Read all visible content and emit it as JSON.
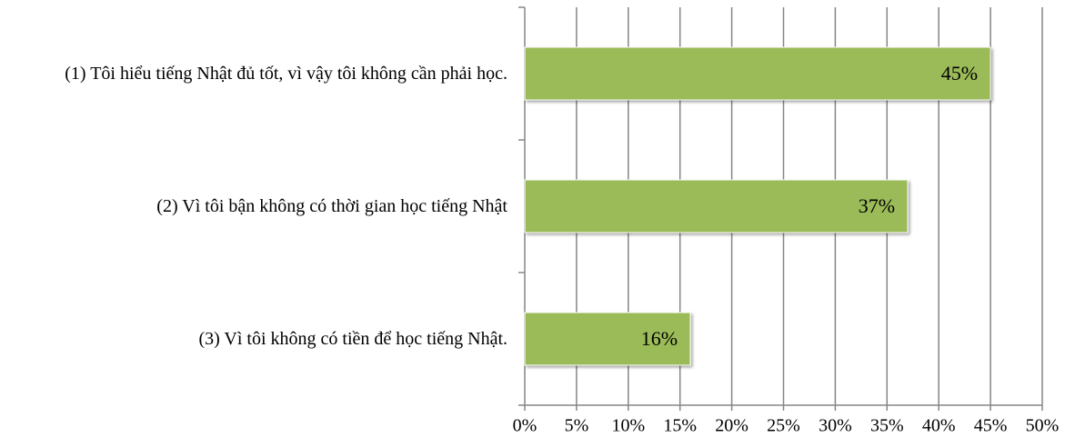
{
  "chart_data": {
    "type": "barh",
    "categories": [
      "(1) Tôi hiểu tiếng Nhật đủ tốt, vì vậy tôi không cần phải học.",
      "(2) Vì tôi bận không có thời gian học tiếng Nhật",
      "(3) Vì tôi không có tiền để học tiếng Nhật."
    ],
    "values": [
      45,
      37,
      16
    ],
    "value_labels": [
      "45%",
      "37%",
      "16%"
    ],
    "color": "#9bbb59",
    "xlim": [
      0,
      50
    ],
    "xticks": [
      {
        "value": 0,
        "label": "0%"
      },
      {
        "value": 5,
        "label": "5%"
      },
      {
        "value": 10,
        "label": "10%"
      },
      {
        "value": 15,
        "label": "15%"
      },
      {
        "value": 20,
        "label": "20%"
      },
      {
        "value": 25,
        "label": "25%"
      },
      {
        "value": 30,
        "label": "30%"
      },
      {
        "value": 35,
        "label": "35%"
      },
      {
        "value": 40,
        "label": "40%"
      },
      {
        "value": 45,
        "label": "45%"
      },
      {
        "value": 50,
        "label": "50%"
      }
    ],
    "grid": true
  }
}
